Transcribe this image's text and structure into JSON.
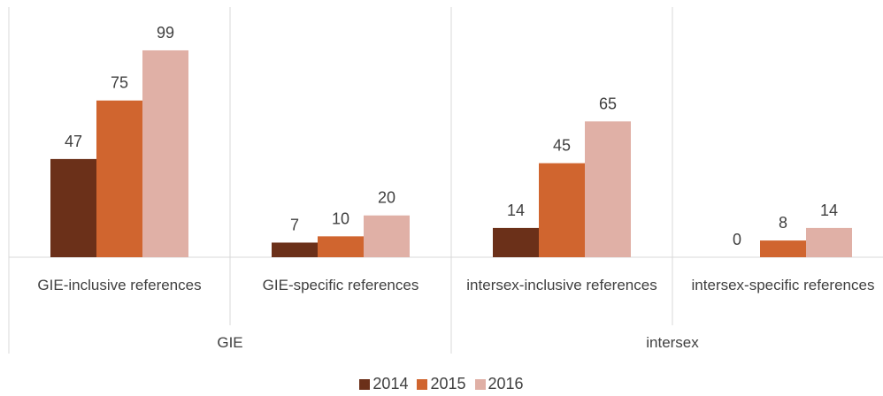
{
  "chart_data": {
    "type": "bar",
    "categories": [
      "GIE-inclusive references",
      "GIE-specific references",
      "intersex-inclusive references",
      "intersex-specific references"
    ],
    "groups": [
      {
        "label": "GIE",
        "categories": [
          0,
          1
        ]
      },
      {
        "label": "intersex",
        "categories": [
          2,
          3
        ]
      }
    ],
    "series": [
      {
        "name": "2014",
        "color": "#6b3019",
        "values": [
          47,
          7,
          14,
          0
        ]
      },
      {
        "name": "2015",
        "color": "#d0652f",
        "values": [
          75,
          10,
          45,
          8
        ]
      },
      {
        "name": "2016",
        "color": "#e0b0a6",
        "values": [
          99,
          20,
          65,
          14
        ]
      }
    ],
    "data_labels": true,
    "legend": "bottom"
  }
}
